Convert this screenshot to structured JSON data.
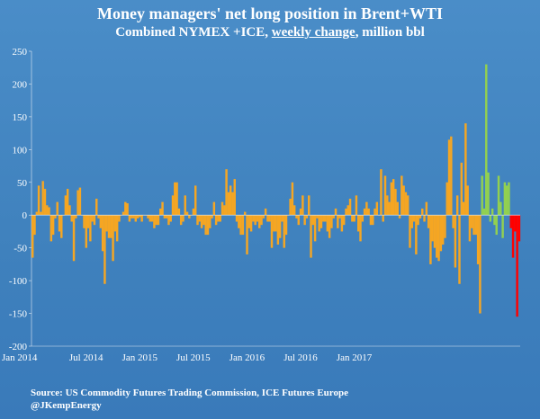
{
  "header": {
    "title": "Money managers' net long position in  Brent+WTI",
    "subtitle_pre": "Combined NYMEX +ICE, ",
    "subtitle_underlined": "weekly change",
    "subtitle_post": ", million bbl"
  },
  "footer": {
    "source": "Source: US Commodity Futures Trading Commission, ICE Futures Europe",
    "handle": "@JKempEnergy"
  },
  "chart_data": {
    "type": "bar",
    "title": "Money managers' net long position in  Brent+WTI",
    "subtitle": "Combined NYMEX +ICE, weekly change, million bbl",
    "ylim": [
      -200,
      250
    ],
    "yticks": [
      250,
      200,
      150,
      100,
      50,
      0,
      -50,
      -100,
      -150,
      -200
    ],
    "xtick_labels": [
      "Jan 2014",
      "Jul 2014",
      "Jan 2015",
      "Jul 2015",
      "Jan 2016",
      "Jul 2016",
      "Jan 2017"
    ],
    "grid": false,
    "legend": "none",
    "colors": {
      "orange": "#f5a623",
      "green": "#92d050",
      "red": "#ff0000",
      "background": "#4a8dc8"
    },
    "series": [
      {
        "values": [
          -65,
          -30,
          5,
          45,
          5,
          52,
          40,
          15,
          12,
          -40,
          -30,
          -5,
          20,
          -25,
          -35,
          0,
          30,
          40,
          15,
          -10,
          -70,
          -5,
          38,
          42,
          0,
          -20,
          -50,
          -20,
          -40,
          -10,
          -15,
          25,
          -5,
          -20,
          -55,
          -105,
          -25,
          -35,
          -35,
          -70,
          -25,
          -40,
          -10,
          0,
          5,
          20,
          18,
          -10,
          -5,
          -5,
          -10,
          -5,
          -3,
          -10,
          0,
          0,
          -5,
          -10,
          -10,
          -20,
          -15,
          -15,
          10,
          20,
          -5,
          -5,
          -15,
          -10,
          30,
          50,
          50,
          10,
          -15,
          -10,
          30,
          5,
          -5,
          0,
          10,
          45,
          -15,
          -10,
          -20,
          -15,
          -30,
          -30,
          -20,
          -5,
          20,
          -15,
          -10,
          -10,
          20,
          15,
          70,
          35,
          45,
          35,
          55,
          -10,
          -20,
          -30,
          -30,
          5,
          -60,
          -20,
          -25,
          -10,
          -15,
          -10,
          -20,
          -15,
          -5,
          10,
          -10,
          -10,
          -50,
          -25,
          -25,
          -45,
          -35,
          -10,
          -50,
          -30,
          0,
          25,
          50,
          15,
          -5,
          -15,
          10,
          30,
          -15,
          -5,
          30,
          -65,
          -15,
          -40,
          -5,
          -25,
          -20,
          -10,
          -10,
          -25,
          -35,
          -20,
          -5,
          10,
          -20,
          -5,
          -25,
          -15,
          10,
          15,
          25,
          -10,
          -10,
          30,
          -25,
          -40,
          -10,
          10,
          20,
          10,
          -15,
          -15,
          10,
          20,
          0,
          70,
          -10,
          60,
          30,
          20,
          50,
          55,
          40,
          20,
          -5,
          60,
          45,
          35,
          30,
          -50,
          -20,
          -10,
          -60,
          -15,
          -5,
          10,
          -10,
          20,
          -20,
          -75,
          -40,
          -50,
          -65,
          -70,
          -55,
          -45,
          -35,
          50,
          115,
          120,
          -20,
          -80,
          30,
          -105,
          80,
          20,
          140,
          45,
          -40,
          -20,
          -30,
          -30,
          -75,
          -150
        ],
        "color": "orange"
      },
      {
        "values": [
          60,
          10,
          230,
          65,
          -10,
          10,
          -15,
          -30,
          60,
          20,
          -35,
          50,
          45,
          50
        ],
        "color": "green"
      },
      {
        "values": [
          -20,
          -65,
          -25,
          -155,
          -40
        ],
        "color": "red"
      }
    ]
  }
}
